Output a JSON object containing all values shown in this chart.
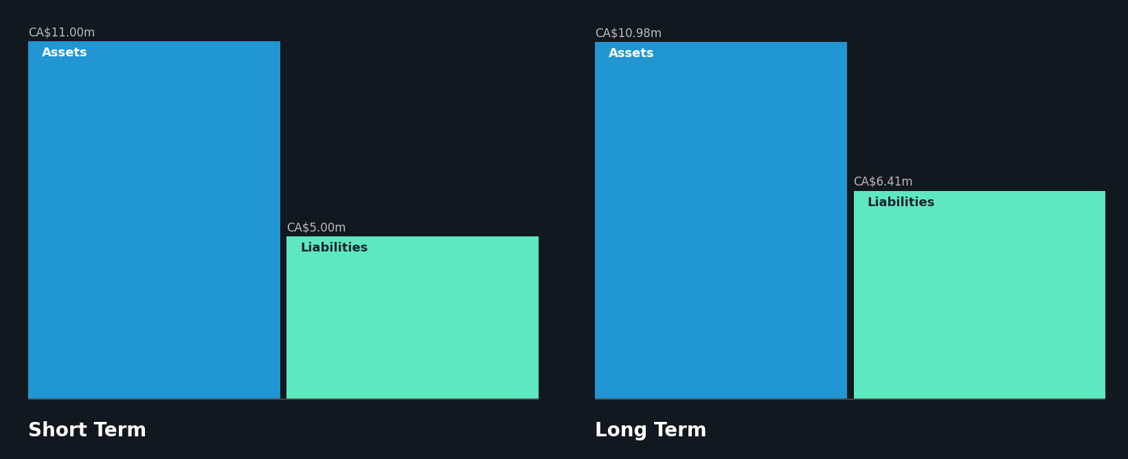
{
  "background_color": "#12181f",
  "short_term": {
    "assets_value": 11.0,
    "assets_label": "CA$11.00m",
    "assets_color": "#2196d3",
    "liabilities_value": 5.0,
    "liabilities_label": "CA$5.00m",
    "liabilities_color": "#5ee8c0",
    "section_label": "Short Term"
  },
  "long_term": {
    "assets_value": 10.98,
    "assets_label": "CA$10.98m",
    "assets_color": "#2196d3",
    "liabilities_value": 6.41,
    "liabilities_label": "CA$6.41m",
    "liabilities_color": "#5ee8c0",
    "section_label": "Long Term"
  },
  "max_value": 11.0,
  "label_color_light": "#ffffff",
  "label_color_dark": "#1a2530",
  "value_label_color": "#bbbbbb",
  "section_label_color": "#ffffff",
  "inner_label_fontsize": 13,
  "value_label_fontsize": 12,
  "section_label_fontsize": 20
}
